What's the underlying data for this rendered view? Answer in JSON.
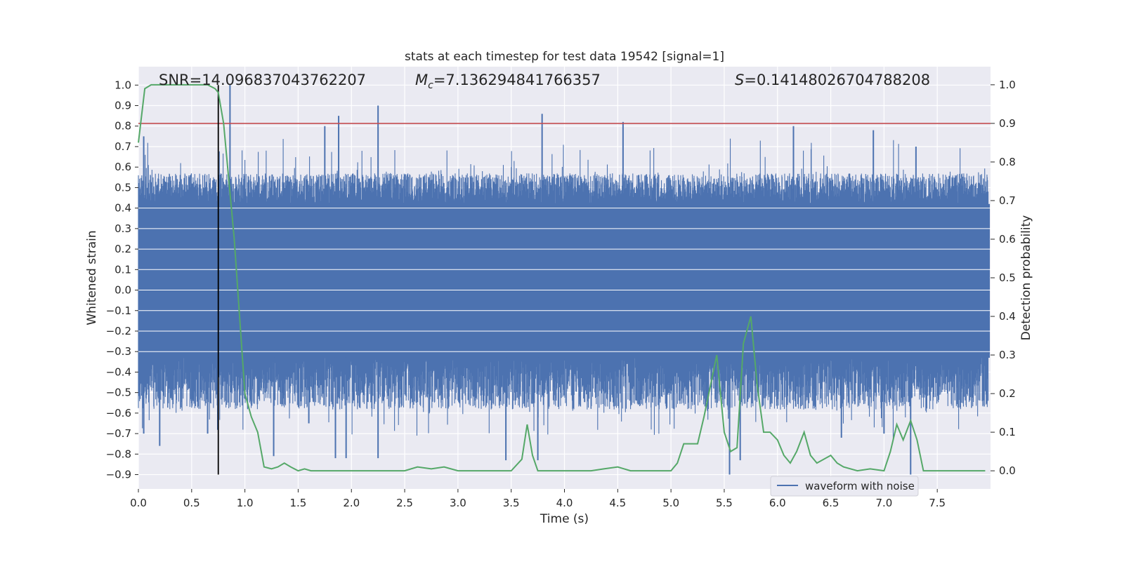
{
  "chart_data": {
    "type": "line",
    "title": "stats at each timestep for test data 19542 [signal=1]",
    "xlabel": "Time (s)",
    "ylabel_left": "Whitened strain",
    "ylabel_right": "Detection probability",
    "xlim": [
      0.0,
      8.0
    ],
    "ylim_left": [
      -0.97,
      1.09
    ],
    "ylim_right": [
      -0.047,
      1.047
    ],
    "x_ticks": [
      0.0,
      0.5,
      1.0,
      1.5,
      2.0,
      2.5,
      3.0,
      3.5,
      4.0,
      4.5,
      5.0,
      5.5,
      6.0,
      6.5,
      7.0,
      7.5
    ],
    "x_tick_labels": [
      "0.0",
      "0.5",
      "1.0",
      "1.5",
      "2.0",
      "2.5",
      "3.0",
      "3.5",
      "4.0",
      "4.5",
      "5.0",
      "5.5",
      "6.0",
      "6.5",
      "7.0",
      "7.5"
    ],
    "y_left_ticks": [
      -0.9,
      -0.8,
      -0.7,
      -0.6,
      -0.5,
      -0.4,
      -0.3,
      -0.2,
      -0.1,
      0.0,
      0.1,
      0.2,
      0.3,
      0.4,
      0.5,
      0.6,
      0.7,
      0.8,
      0.9,
      1.0
    ],
    "y_left_tick_labels": [
      "−0.9",
      "−0.8",
      "−0.7",
      "−0.6",
      "−0.5",
      "−0.4",
      "−0.3",
      "−0.2",
      "−0.1",
      "0.0",
      "0.1",
      "0.2",
      "0.3",
      "0.4",
      "0.5",
      "0.6",
      "0.7",
      "0.8",
      "0.9",
      "1.0"
    ],
    "y_right_ticks": [
      0.0,
      0.1,
      0.2,
      0.3,
      0.4,
      0.5,
      0.6,
      0.7,
      0.8,
      0.9,
      1.0
    ],
    "y_right_tick_labels": [
      "0.0",
      "0.1",
      "0.2",
      "0.3",
      "0.4",
      "0.5",
      "0.6",
      "0.7",
      "0.8",
      "0.9",
      "1.0"
    ],
    "grid": true,
    "annotations": [
      {
        "text": "SNR=14.096837043762207"
      },
      {
        "text_italic": "M",
        "subscript": "c",
        "text": "=7.136294841766357"
      },
      {
        "text_italic": "S",
        "text": "=0.14148026704788208"
      }
    ],
    "legend": {
      "position": "lower-right",
      "entries": [
        "waveform with noise"
      ]
    },
    "threshold_line": {
      "y_right": 0.9,
      "color": "#c44e52"
    },
    "vertical_marker": {
      "x": 0.75,
      "color": "#000000"
    },
    "colors": {
      "waveform": "#4c72b0",
      "probability": "#55a868",
      "threshold": "#c44e52",
      "marker": "#000000",
      "plot_bg": "#eaeaf2",
      "grid": "#ffffff"
    },
    "series": [
      {
        "name": "waveform with noise",
        "axis": "left",
        "kind": "noise-band",
        "core_range": [
          -0.33,
          0.42
        ],
        "typical_peak": 0.55,
        "typical_trough": -0.55,
        "spikes": [
          [
            0.86,
            1.0
          ],
          [
            1.88,
            0.85
          ],
          [
            2.25,
            0.9
          ],
          [
            3.79,
            0.86
          ],
          [
            4.55,
            0.82
          ],
          [
            0.05,
            0.75
          ],
          [
            1.75,
            0.8
          ],
          [
            6.15,
            0.8
          ],
          [
            6.9,
            0.78
          ],
          [
            7.3,
            0.7
          ],
          [
            0.2,
            -0.76
          ],
          [
            1.85,
            -0.82
          ],
          [
            1.95,
            -0.82
          ],
          [
            2.25,
            -0.82
          ],
          [
            3.45,
            -0.83
          ],
          [
            3.75,
            -0.83
          ],
          [
            5.55,
            -0.9
          ],
          [
            5.65,
            -0.83
          ],
          [
            7.25,
            -0.9
          ],
          [
            1.27,
            -0.81
          ],
          [
            0.05,
            -0.7
          ],
          [
            1.6,
            -0.65
          ],
          [
            0.65,
            -0.7
          ],
          [
            6.6,
            -0.72
          ],
          [
            7.0,
            -0.7
          ]
        ]
      },
      {
        "name": "",
        "axis": "right",
        "kind": "line",
        "x": [
          0.0,
          0.06,
          0.12,
          0.25,
          0.5,
          0.65,
          0.72,
          0.75,
          0.8,
          0.85,
          0.9,
          0.95,
          1.0,
          1.06,
          1.12,
          1.18,
          1.25,
          1.31,
          1.37,
          1.43,
          1.5,
          1.56,
          1.62,
          1.75,
          2.0,
          2.25,
          2.5,
          2.62,
          2.75,
          2.87,
          3.0,
          3.25,
          3.5,
          3.6,
          3.65,
          3.7,
          3.75,
          3.8,
          3.87,
          4.0,
          4.25,
          4.37,
          4.5,
          4.62,
          4.75,
          5.0,
          5.06,
          5.12,
          5.18,
          5.25,
          5.31,
          5.37,
          5.43,
          5.5,
          5.56,
          5.62,
          5.68,
          5.75,
          5.81,
          5.87,
          5.93,
          6.0,
          6.06,
          6.12,
          6.18,
          6.25,
          6.31,
          6.37,
          6.5,
          6.56,
          6.62,
          6.75,
          6.87,
          7.0,
          7.06,
          7.12,
          7.18,
          7.25,
          7.31,
          7.37,
          7.5,
          7.75,
          7.95
        ],
        "y": [
          0.85,
          0.99,
          1.0,
          1.0,
          1.0,
          1.0,
          0.99,
          0.98,
          0.9,
          0.75,
          0.6,
          0.4,
          0.2,
          0.14,
          0.1,
          0.01,
          0.005,
          0.01,
          0.02,
          0.01,
          0.0,
          0.005,
          0.0,
          0.0,
          0.0,
          0.0,
          0.0,
          0.01,
          0.005,
          0.01,
          0.0,
          0.0,
          0.0,
          0.03,
          0.12,
          0.04,
          0.0,
          0.0,
          0.0,
          0.0,
          0.0,
          0.005,
          0.01,
          0.0,
          0.0,
          0.0,
          0.02,
          0.07,
          0.07,
          0.07,
          0.14,
          0.22,
          0.3,
          0.1,
          0.05,
          0.06,
          0.33,
          0.4,
          0.22,
          0.1,
          0.1,
          0.08,
          0.04,
          0.02,
          0.05,
          0.1,
          0.04,
          0.02,
          0.04,
          0.02,
          0.01,
          0.0,
          0.005,
          0.0,
          0.05,
          0.12,
          0.08,
          0.13,
          0.08,
          0.0,
          0.0,
          0.0,
          0.0
        ]
      }
    ]
  }
}
